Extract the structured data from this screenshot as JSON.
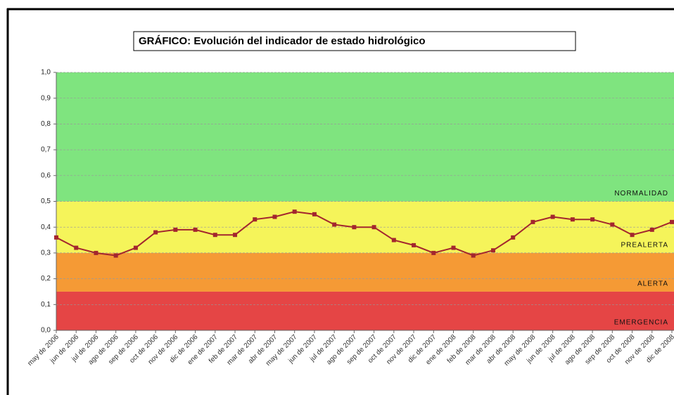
{
  "chart_data": {
    "type": "line",
    "title": "GRÁFICO: Evolución del indicador de estado hidrológico",
    "categories": [
      "may de 2006",
      "jun de 2006",
      "jul de 2006",
      "ago de 2006",
      "sep de 2006",
      "oct de 2006",
      "nov de 2006",
      "dic de 2006",
      "ene de 2007",
      "feb de 2007",
      "mar de 2007",
      "abr de 2007",
      "may de 2007",
      "jun de 2007",
      "jul de 2007",
      "ago de 2007",
      "sep de 2007",
      "oct de 2007",
      "nov de 2007",
      "dic de 2007",
      "ene de 2008",
      "feb de 2008",
      "mar de 2008",
      "abr de 2008",
      "may de 2008",
      "jun de 2008",
      "jul de 2008",
      "ago de 2008",
      "sep de 2008",
      "oct de 2008",
      "nov de 2008",
      "dic de 2008"
    ],
    "series": [
      {
        "color": "#a3262e",
        "values": [
          0.36,
          0.32,
          0.3,
          0.29,
          0.32,
          0.38,
          0.39,
          0.39,
          0.37,
          0.37,
          0.43,
          0.44,
          0.46,
          0.45,
          0.41,
          0.4,
          0.4,
          0.35,
          0.33,
          0.3,
          0.32,
          0.29,
          0.31,
          0.36,
          0.42,
          0.44,
          0.43,
          0.43,
          0.41,
          0.37,
          0.39,
          0.42
        ]
      }
    ],
    "bands": [
      {
        "name": "NORMALIDAD",
        "from": 0.5,
        "to": 1.0,
        "color": "#7fe47f"
      },
      {
        "name": "PREALERTA",
        "from": 0.3,
        "to": 0.5,
        "color": "#f5f45a"
      },
      {
        "name": "ALERTA",
        "from": 0.15,
        "to": 0.3,
        "color": "#f59a35"
      },
      {
        "name": "EMERGENCIA",
        "from": 0.0,
        "to": 0.15,
        "color": "#e54545"
      }
    ],
    "ylim": [
      0,
      1
    ],
    "yticks": [
      {
        "value": 0,
        "label": "0,0"
      },
      {
        "value": 0.1,
        "label": "0,1"
      },
      {
        "value": 0.2,
        "label": "0,2"
      },
      {
        "value": 0.3,
        "label": "0,3"
      },
      {
        "value": 0.4,
        "label": "0,4"
      },
      {
        "value": 0.5,
        "label": "0,5"
      },
      {
        "value": 0.6,
        "label": "0,6"
      },
      {
        "value": 0.7,
        "label": "0,7"
      },
      {
        "value": 0.8,
        "label": "0,8"
      },
      {
        "value": 0.9,
        "label": "0,9"
      },
      {
        "value": 1,
        "label": "1,0"
      }
    ],
    "grid": true
  }
}
